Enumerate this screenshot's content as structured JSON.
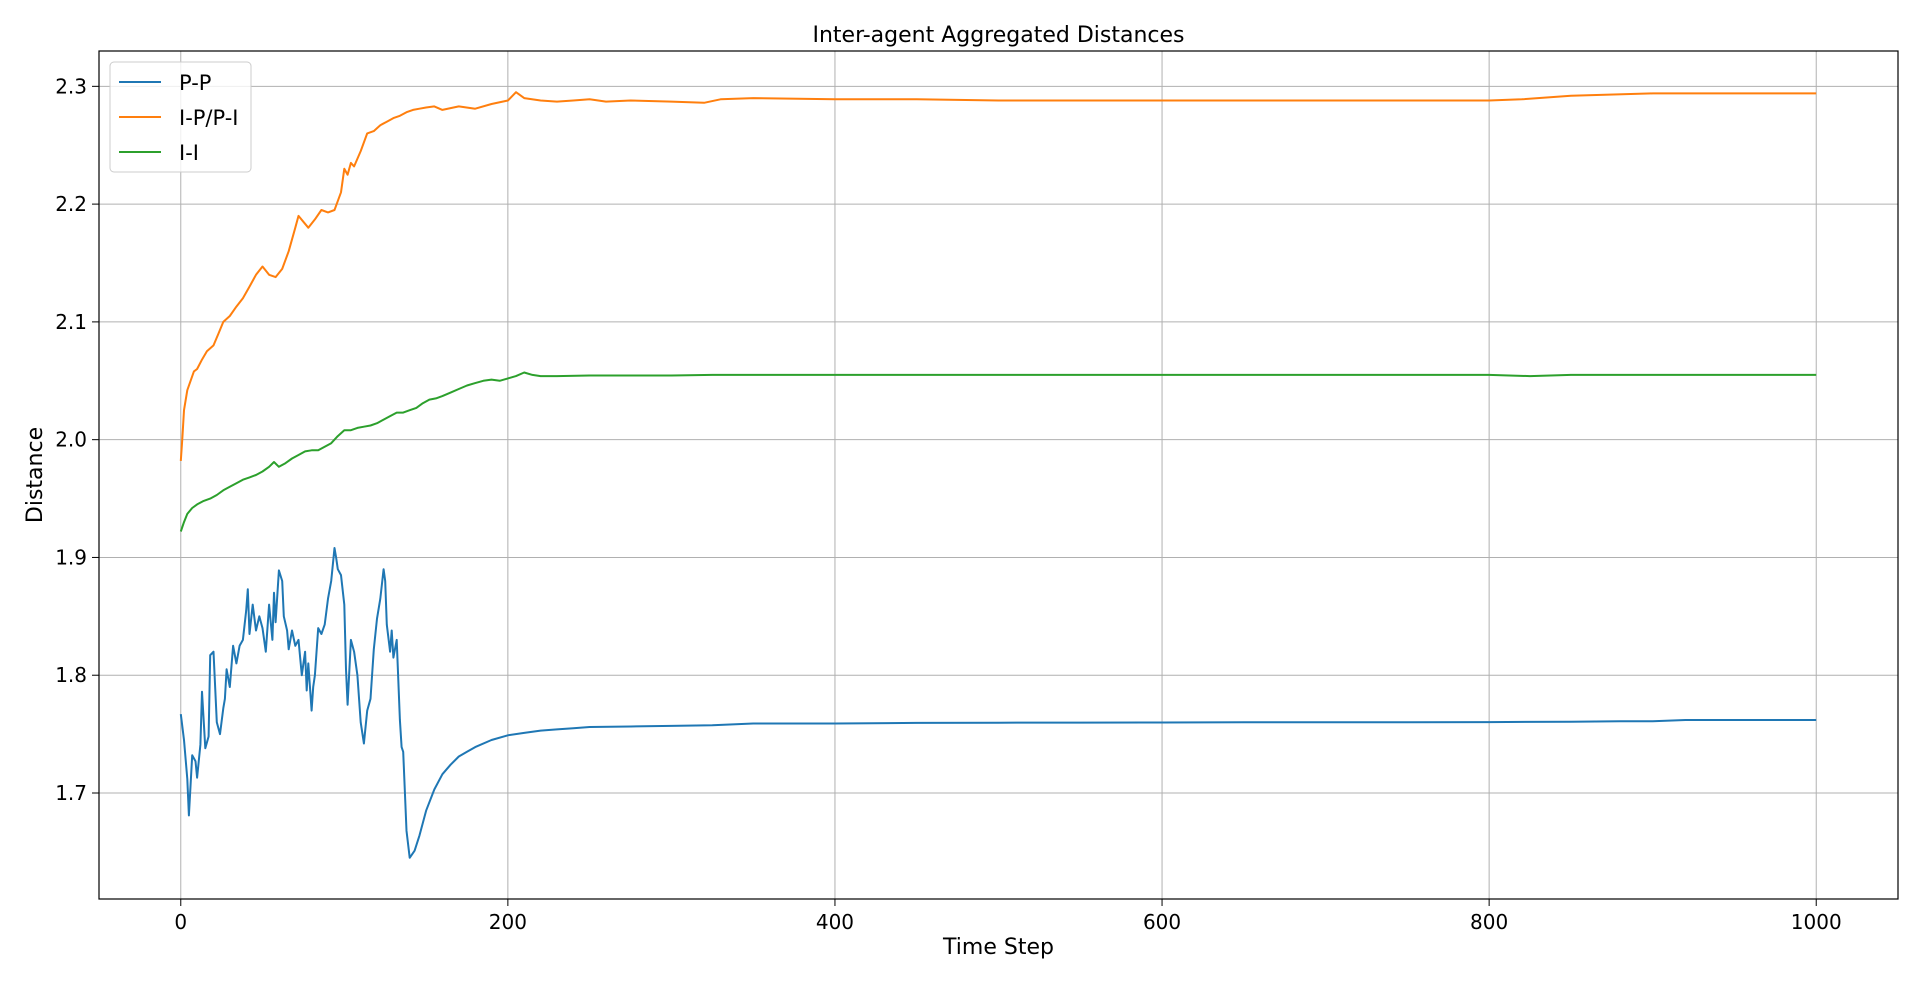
{
  "chart_data": {
    "type": "line",
    "title": "Inter-agent Aggregated Distances",
    "xlabel": "Time Step",
    "ylabel": "Distance",
    "xlim": [
      -50,
      1050
    ],
    "ylim": [
      1.61,
      2.33
    ],
    "xticks": [
      0,
      200,
      400,
      600,
      800,
      1000
    ],
    "yticks": [
      1.7,
      1.8,
      1.9,
      2.0,
      2.1,
      2.2,
      2.3
    ],
    "xtick_labels": [
      "0",
      "200",
      "400",
      "600",
      "800",
      "1000"
    ],
    "ytick_labels": [
      "1.7",
      "1.8",
      "1.9",
      "2.0",
      "2.1",
      "2.2",
      "2.3"
    ],
    "grid": true,
    "legend_position": "top-left",
    "series": [
      {
        "name": "P-P",
        "color": "#1f77b4",
        "x": [
          0,
          2,
          4,
          5,
          7,
          9,
          10,
          12,
          13,
          15,
          17,
          18,
          20,
          22,
          24,
          26,
          27,
          28,
          30,
          32,
          34,
          36,
          38,
          40,
          41,
          42,
          44,
          46,
          48,
          50,
          52,
          54,
          56,
          57,
          58,
          60,
          62,
          63,
          65,
          66,
          68,
          70,
          72,
          74,
          76,
          77,
          78,
          80,
          81,
          82,
          84,
          86,
          88,
          90,
          92,
          94,
          95,
          96,
          98,
          100,
          101,
          102,
          104,
          106,
          108,
          110,
          112,
          114,
          116,
          118,
          120,
          122,
          124,
          125,
          126,
          128,
          129,
          130,
          132,
          134,
          135,
          136,
          138,
          140,
          143,
          146,
          150,
          155,
          160,
          165,
          170,
          175,
          180,
          190,
          200,
          210,
          220,
          230,
          240,
          250,
          275,
          300,
          325,
          350,
          400,
          450,
          500,
          550,
          600,
          650,
          700,
          750,
          800,
          850,
          880,
          900,
          920,
          950,
          1000
        ],
        "y": [
          1.767,
          1.745,
          1.712,
          1.681,
          1.732,
          1.727,
          1.713,
          1.741,
          1.786,
          1.738,
          1.748,
          1.817,
          1.82,
          1.76,
          1.75,
          1.772,
          1.78,
          1.805,
          1.79,
          1.825,
          1.81,
          1.825,
          1.83,
          1.855,
          1.873,
          1.835,
          1.86,
          1.838,
          1.85,
          1.84,
          1.82,
          1.86,
          1.83,
          1.87,
          1.845,
          1.889,
          1.88,
          1.85,
          1.838,
          1.822,
          1.838,
          1.825,
          1.83,
          1.8,
          1.82,
          1.787,
          1.81,
          1.77,
          1.79,
          1.8,
          1.84,
          1.835,
          1.843,
          1.865,
          1.88,
          1.908,
          1.9,
          1.89,
          1.885,
          1.86,
          1.805,
          1.775,
          1.83,
          1.82,
          1.8,
          1.76,
          1.742,
          1.77,
          1.78,
          1.822,
          1.848,
          1.865,
          1.89,
          1.88,
          1.843,
          1.82,
          1.838,
          1.815,
          1.83,
          1.762,
          1.739,
          1.735,
          1.668,
          1.645,
          1.651,
          1.664,
          1.685,
          1.703,
          1.716,
          1.724,
          1.731,
          1.735,
          1.739,
          1.745,
          1.749,
          1.751,
          1.753,
          1.754,
          1.755,
          1.756,
          1.7565,
          1.757,
          1.7575,
          1.759,
          1.759,
          1.7595,
          1.7597,
          1.7598,
          1.7599,
          1.76,
          1.76,
          1.76,
          1.7602,
          1.7605,
          1.761,
          1.761,
          1.762,
          1.762,
          1.762
        ]
      },
      {
        "name": "I-P/P-I",
        "color": "#ff7f0e",
        "x": [
          0,
          1,
          2,
          4,
          6,
          8,
          10,
          13,
          16,
          20,
          23,
          26,
          30,
          34,
          38,
          42,
          46,
          50,
          54,
          58,
          62,
          66,
          70,
          72,
          75,
          78,
          82,
          86,
          90,
          94,
          98,
          100,
          102,
          104,
          106,
          110,
          114,
          118,
          122,
          126,
          130,
          134,
          138,
          142,
          146,
          150,
          155,
          160,
          170,
          180,
          190,
          200,
          205,
          210,
          220,
          230,
          240,
          250,
          260,
          275,
          300,
          320,
          330,
          350,
          400,
          450,
          500,
          550,
          600,
          650,
          700,
          750,
          800,
          820,
          850,
          900,
          950,
          1000
        ],
        "y": [
          1.982,
          2.002,
          2.025,
          2.042,
          2.05,
          2.058,
          2.06,
          2.068,
          2.075,
          2.08,
          2.09,
          2.1,
          2.105,
          2.113,
          2.12,
          2.13,
          2.14,
          2.147,
          2.14,
          2.138,
          2.145,
          2.16,
          2.18,
          2.19,
          2.185,
          2.18,
          2.187,
          2.195,
          2.193,
          2.195,
          2.21,
          2.23,
          2.225,
          2.235,
          2.232,
          2.245,
          2.26,
          2.262,
          2.267,
          2.27,
          2.273,
          2.275,
          2.278,
          2.28,
          2.281,
          2.282,
          2.283,
          2.28,
          2.283,
          2.281,
          2.285,
          2.288,
          2.295,
          2.29,
          2.288,
          2.287,
          2.288,
          2.289,
          2.287,
          2.288,
          2.287,
          2.286,
          2.289,
          2.29,
          2.289,
          2.289,
          2.288,
          2.288,
          2.288,
          2.288,
          2.288,
          2.288,
          2.288,
          2.289,
          2.292,
          2.294,
          2.294,
          2.294
        ]
      },
      {
        "name": "I-I",
        "color": "#2ca02c",
        "x": [
          0,
          2,
          4,
          7,
          10,
          14,
          18,
          22,
          26,
          30,
          34,
          38,
          42,
          46,
          50,
          54,
          57,
          60,
          64,
          68,
          72,
          76,
          80,
          84,
          88,
          92,
          96,
          100,
          104,
          108,
          112,
          116,
          120,
          124,
          128,
          132,
          136,
          140,
          144,
          148,
          152,
          156,
          160,
          165,
          170,
          175,
          180,
          185,
          190,
          195,
          200,
          205,
          210,
          215,
          220,
          230,
          250,
          275,
          300,
          325,
          350,
          400,
          450,
          500,
          550,
          600,
          650,
          700,
          750,
          800,
          825,
          850,
          900,
          950,
          1000
        ],
        "y": [
          1.922,
          1.93,
          1.937,
          1.942,
          1.945,
          1.948,
          1.95,
          1.953,
          1.957,
          1.96,
          1.963,
          1.966,
          1.968,
          1.97,
          1.973,
          1.977,
          1.981,
          1.977,
          1.98,
          1.984,
          1.987,
          1.99,
          1.991,
          1.991,
          1.994,
          1.997,
          2.003,
          2.008,
          2.008,
          2.01,
          2.011,
          2.012,
          2.014,
          2.017,
          2.02,
          2.023,
          2.023,
          2.025,
          2.027,
          2.031,
          2.034,
          2.035,
          2.037,
          2.04,
          2.043,
          2.046,
          2.048,
          2.05,
          2.051,
          2.05,
          2.052,
          2.054,
          2.057,
          2.055,
          2.054,
          2.054,
          2.0545,
          2.0545,
          2.0545,
          2.055,
          2.055,
          2.055,
          2.055,
          2.055,
          2.055,
          2.055,
          2.055,
          2.055,
          2.055,
          2.055,
          2.054,
          2.055,
          2.055,
          2.055,
          2.055
        ]
      }
    ]
  }
}
